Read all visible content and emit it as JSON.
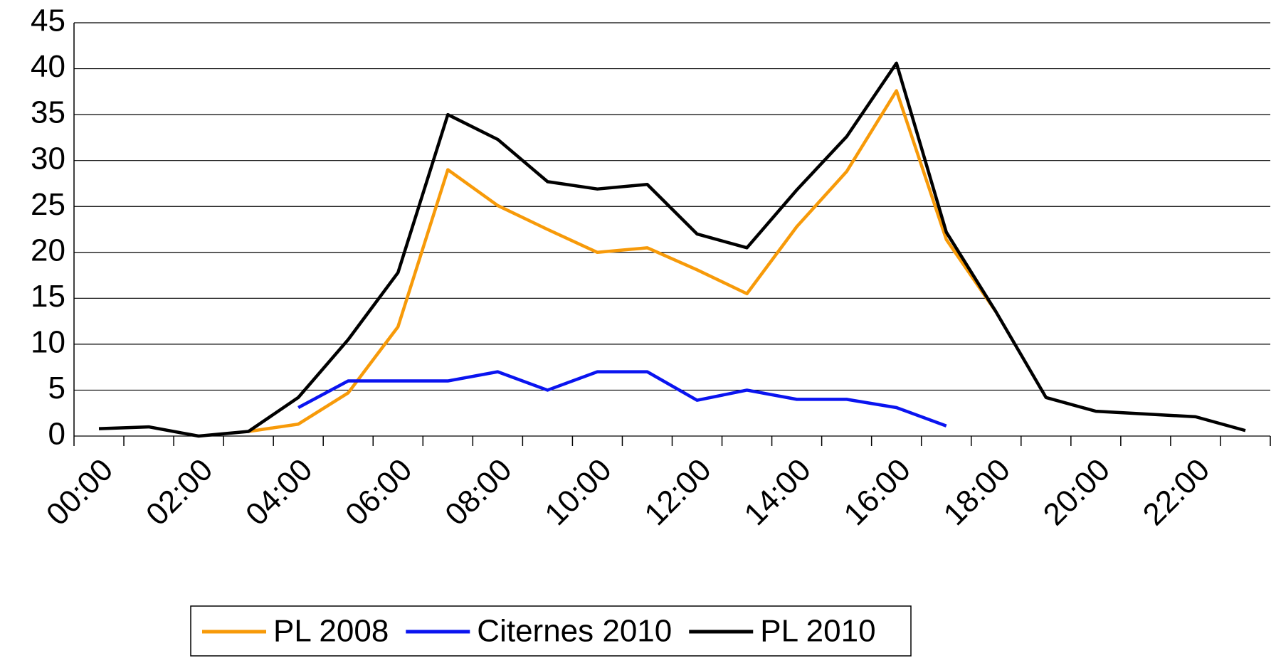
{
  "chart_data": {
    "type": "line",
    "categories": [
      "00:00",
      null,
      "02:00",
      null,
      "04:00",
      null,
      "06:00",
      null,
      "08:00",
      null,
      "10:00",
      null,
      "12:00",
      null,
      "14:00",
      null,
      "16:00",
      null,
      "18:00",
      null,
      "20:00",
      null,
      "22:00",
      null
    ],
    "series": [
      {
        "name": "PL 2008",
        "color": "#f79a09",
        "values": [
          null,
          null,
          null,
          0.5,
          1.3,
          4.7,
          11.9,
          29,
          25.1,
          22.5,
          20,
          20.5,
          18.1,
          15.5,
          22.8,
          28.8,
          37.6,
          21.4,
          13.5,
          null,
          null,
          null,
          null,
          null
        ]
      },
      {
        "name": "Citernes 2010",
        "color": "#0a14f0",
        "values": [
          null,
          null,
          null,
          null,
          3.1,
          6,
          6,
          6,
          7,
          5,
          7,
          7,
          3.9,
          5,
          4,
          4,
          3.1,
          1.1,
          null,
          null,
          null,
          null,
          null,
          null
        ]
      },
      {
        "name": "PL 2010",
        "color": "#000000",
        "values": [
          0.8,
          1.0,
          0,
          0.5,
          4.2,
          10.5,
          17.8,
          35,
          32.3,
          27.7,
          26.9,
          27.4,
          22,
          20.5,
          26.8,
          32.6,
          40.6,
          22.2,
          13.5,
          4.2,
          2.7,
          2.4,
          2.1,
          0.6
        ]
      }
    ],
    "ylim": [
      0,
      45
    ],
    "yticks": [
      0,
      5,
      10,
      15,
      20,
      25,
      30,
      35,
      40,
      45
    ],
    "grid": true,
    "legend": "bottom"
  }
}
